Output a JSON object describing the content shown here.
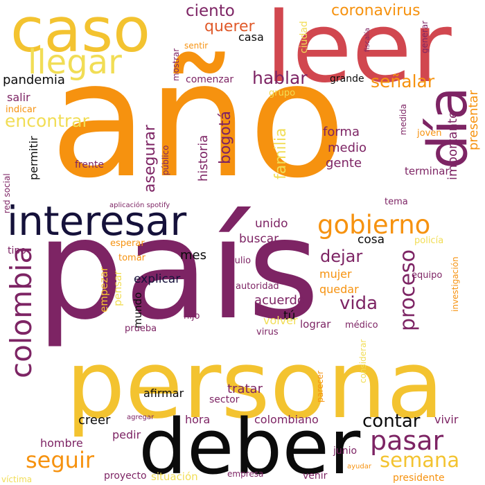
{
  "palette": {
    "black": "#0b0b0b",
    "navy": "#15113a",
    "purple": "#7d2464",
    "red": "#d1474f",
    "orange": "#f6920f",
    "gold": "#f3c330",
    "yellow": "#f1dd55",
    "burnt": "#e05a2a"
  },
  "words": [
    {
      "text": "año",
      "color": "orange",
      "vertical": false
    },
    {
      "text": "país",
      "color": "purple",
      "vertical": false
    },
    {
      "text": "persona",
      "color": "gold",
      "vertical": false
    },
    {
      "text": "deber",
      "color": "black",
      "vertical": false
    },
    {
      "text": "leer",
      "color": "red",
      "vertical": false
    },
    {
      "text": "caso",
      "color": "gold",
      "vertical": false
    },
    {
      "text": "interesar",
      "color": "navy",
      "vertical": false
    },
    {
      "text": "día",
      "color": "purple",
      "vertical": true
    },
    {
      "text": "llegar",
      "color": "yellow",
      "vertical": false
    },
    {
      "text": "colombia",
      "color": "purple",
      "vertical": true
    },
    {
      "text": "gobierno",
      "color": "orange",
      "vertical": false
    },
    {
      "text": "pasar",
      "color": "purple",
      "vertical": false
    },
    {
      "text": "semana",
      "color": "gold",
      "vertical": false
    },
    {
      "text": "seguir",
      "color": "orange",
      "vertical": false
    },
    {
      "text": "proceso",
      "color": "purple",
      "vertical": true
    },
    {
      "text": "encontrar",
      "color": "yellow",
      "vertical": false
    },
    {
      "text": "coronavirus",
      "color": "orange",
      "vertical": false
    },
    {
      "text": "ciento",
      "color": "purple",
      "vertical": false
    },
    {
      "text": "hablar",
      "color": "purple",
      "vertical": false
    },
    {
      "text": "señalar",
      "color": "orange",
      "vertical": false
    },
    {
      "text": "contar",
      "color": "black",
      "vertical": false
    },
    {
      "text": "vida",
      "color": "purple",
      "vertical": false
    },
    {
      "text": "dejar",
      "color": "purple",
      "vertical": false
    },
    {
      "text": "querer",
      "color": "burnt",
      "vertical": false
    },
    {
      "text": "asegurar",
      "color": "purple",
      "vertical": true
    },
    {
      "text": "bogotá",
      "color": "purple",
      "vertical": true
    },
    {
      "text": "familia",
      "color": "yellow",
      "vertical": true
    },
    {
      "text": "forma",
      "color": "purple",
      "vertical": false
    },
    {
      "text": "medio",
      "color": "purple",
      "vertical": false
    },
    {
      "text": "gente",
      "color": "purple",
      "vertical": false
    },
    {
      "text": "historia",
      "color": "purple",
      "vertical": true
    },
    {
      "text": "importante",
      "color": "purple",
      "vertical": true
    },
    {
      "text": "presentar",
      "color": "orange",
      "vertical": true
    },
    {
      "text": "pandemia",
      "color": "black",
      "vertical": false
    },
    {
      "text": "salir",
      "color": "purple",
      "vertical": false
    },
    {
      "text": "casa",
      "color": "black",
      "vertical": false
    },
    {
      "text": "comenzar",
      "color": "purple",
      "vertical": false
    },
    {
      "text": "grande",
      "color": "black",
      "vertical": false
    },
    {
      "text": "grupo",
      "color": "yellow",
      "vertical": false
    },
    {
      "text": "mostrar",
      "color": "purple",
      "vertical": true
    },
    {
      "text": "sentir",
      "color": "orange",
      "vertical": false
    },
    {
      "text": "ciudad",
      "color": "yellow",
      "vertical": true
    },
    {
      "text": "fiscalía",
      "color": "purple",
      "vertical": true
    },
    {
      "text": "generar",
      "color": "purple",
      "vertical": true
    },
    {
      "text": "indicar",
      "color": "orange",
      "vertical": false
    },
    {
      "text": "medida",
      "color": "purple",
      "vertical": true
    },
    {
      "text": "joven",
      "color": "orange",
      "vertical": false
    },
    {
      "text": "terminar",
      "color": "purple",
      "vertical": false
    },
    {
      "text": "frente",
      "color": "purple",
      "vertical": false
    },
    {
      "text": "público",
      "color": "purple",
      "vertical": true
    },
    {
      "text": "permitir",
      "color": "black",
      "vertical": true
    },
    {
      "text": "red social",
      "color": "purple",
      "vertical": true
    },
    {
      "text": "aplicación spotify",
      "color": "purple",
      "vertical": false
    },
    {
      "text": "tema",
      "color": "purple",
      "vertical": false
    },
    {
      "text": "unido",
      "color": "purple",
      "vertical": false
    },
    {
      "text": "buscar",
      "color": "purple",
      "vertical": false
    },
    {
      "text": "cosa",
      "color": "black",
      "vertical": false
    },
    {
      "text": "policía",
      "color": "yellow",
      "vertical": false
    },
    {
      "text": "tipo",
      "color": "purple",
      "vertical": false
    },
    {
      "text": "esperar",
      "color": "orange",
      "vertical": false
    },
    {
      "text": "tomar",
      "color": "orange",
      "vertical": false
    },
    {
      "text": "mes",
      "color": "black",
      "vertical": false
    },
    {
      "text": "julio",
      "color": "purple",
      "vertical": false
    },
    {
      "text": "mujer",
      "color": "orange",
      "vertical": false
    },
    {
      "text": "investigación",
      "color": "orange",
      "vertical": true
    },
    {
      "text": "equipo",
      "color": "purple",
      "vertical": false
    },
    {
      "text": "explicar",
      "color": "navy",
      "vertical": false
    },
    {
      "text": "autoridad",
      "color": "purple",
      "vertical": false
    },
    {
      "text": "quedar",
      "color": "orange",
      "vertical": false
    },
    {
      "text": "acuerdo",
      "color": "purple",
      "vertical": false
    },
    {
      "text": "empezar",
      "color": "gold",
      "vertical": true
    },
    {
      "text": "pensar",
      "color": "yellow",
      "vertical": true
    },
    {
      "text": "mundo",
      "color": "black",
      "vertical": true
    },
    {
      "text": "hijo",
      "color": "purple",
      "vertical": false
    },
    {
      "text": "tú",
      "color": "black",
      "vertical": false
    },
    {
      "text": "volver",
      "color": "yellow",
      "vertical": false
    },
    {
      "text": "lograr",
      "color": "purple",
      "vertical": false
    },
    {
      "text": "virus",
      "color": "purple",
      "vertical": false
    },
    {
      "text": "médico",
      "color": "purple",
      "vertical": false
    },
    {
      "text": "prueba",
      "color": "purple",
      "vertical": false
    },
    {
      "text": "considerar",
      "color": "yellow",
      "vertical": true
    },
    {
      "text": "parecer",
      "color": "orange",
      "vertical": true
    },
    {
      "text": "tratar",
      "color": "purple",
      "vertical": false
    },
    {
      "text": "sector",
      "color": "purple",
      "vertical": false
    },
    {
      "text": "afirmar",
      "color": "black",
      "vertical": false
    },
    {
      "text": "agregar",
      "color": "purple",
      "vertical": false
    },
    {
      "text": "creer",
      "color": "black",
      "vertical": false
    },
    {
      "text": "hora",
      "color": "purple",
      "vertical": false
    },
    {
      "text": "colombiano",
      "color": "purple",
      "vertical": false
    },
    {
      "text": "vivir",
      "color": "purple",
      "vertical": false
    },
    {
      "text": "hombre",
      "color": "purple",
      "vertical": false
    },
    {
      "text": "pedir",
      "color": "purple",
      "vertical": false
    },
    {
      "text": "junio",
      "color": "purple",
      "vertical": false
    },
    {
      "text": "ayudar",
      "color": "orange",
      "vertical": false
    },
    {
      "text": "víctima",
      "color": "yellow",
      "vertical": false
    },
    {
      "text": "proyecto",
      "color": "purple",
      "vertical": false
    },
    {
      "text": "situación",
      "color": "yellow",
      "vertical": false
    },
    {
      "text": "empresa",
      "color": "purple",
      "vertical": false
    },
    {
      "text": "venir",
      "color": "purple",
      "vertical": false
    },
    {
      "text": "presidente",
      "color": "orange",
      "vertical": false
    }
  ]
}
